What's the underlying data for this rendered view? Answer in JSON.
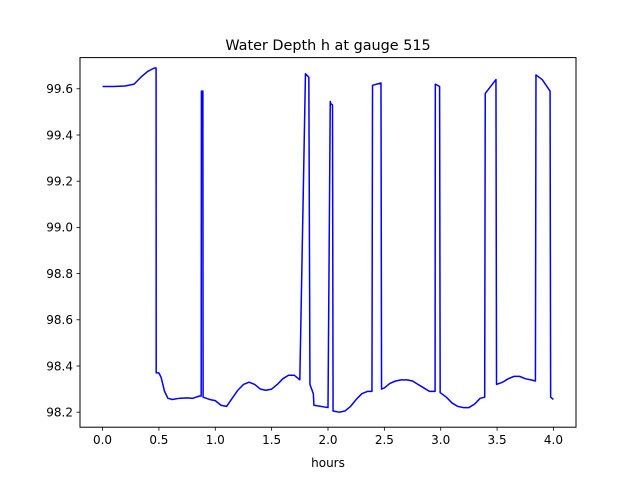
{
  "chart_data": {
    "type": "line",
    "title": "Water Depth h at gauge 515",
    "xlabel": "hours",
    "ylabel": "",
    "xlim": [
      -0.2,
      4.2
    ],
    "ylim": [
      98.135,
      99.735
    ],
    "xticks": [
      0.0,
      0.5,
      1.0,
      1.5,
      2.0,
      2.5,
      3.0,
      3.5,
      4.0
    ],
    "xtick_labels": [
      "0.0",
      "0.5",
      "1.0",
      "1.5",
      "2.0",
      "2.5",
      "3.0",
      "3.5",
      "4.0"
    ],
    "yticks": [
      98.2,
      98.4,
      98.6,
      98.8,
      99.0,
      99.2,
      99.4,
      99.6
    ],
    "ytick_labels": [
      "98.2",
      "98.4",
      "98.6",
      "98.8",
      "99.0",
      "99.2",
      "99.4",
      "99.6"
    ],
    "grid": false,
    "series": [
      {
        "color": "#0000ff",
        "x": [
          0.0,
          0.1,
          0.2,
          0.28,
          0.34,
          0.4,
          0.46,
          0.475,
          0.476,
          0.5,
          0.52,
          0.55,
          0.58,
          0.62,
          0.68,
          0.75,
          0.8,
          0.86,
          0.875,
          0.877,
          0.89,
          0.892,
          0.95,
          1.0,
          1.05,
          1.1,
          1.15,
          1.2,
          1.25,
          1.3,
          1.35,
          1.4,
          1.45,
          1.5,
          1.55,
          1.6,
          1.65,
          1.7,
          1.75,
          1.8,
          1.83,
          1.84,
          1.87,
          1.875,
          2.0,
          2.02,
          2.025,
          2.04,
          2.045,
          2.1,
          2.15,
          2.2,
          2.25,
          2.3,
          2.35,
          2.39,
          2.395,
          2.47,
          2.475,
          2.5,
          2.55,
          2.6,
          2.65,
          2.7,
          2.75,
          2.8,
          2.85,
          2.9,
          2.95,
          2.952,
          2.99,
          2.995,
          3.05,
          3.1,
          3.15,
          3.2,
          3.25,
          3.3,
          3.35,
          3.39,
          3.395,
          3.49,
          3.495,
          3.55,
          3.6,
          3.65,
          3.7,
          3.75,
          3.8,
          3.84,
          3.845,
          3.9,
          3.97,
          3.975,
          4.0
        ],
        "y": [
          99.61,
          99.61,
          99.612,
          99.62,
          99.65,
          99.675,
          99.69,
          99.69,
          98.37,
          98.37,
          98.35,
          98.29,
          98.26,
          98.255,
          98.26,
          98.262,
          98.26,
          98.27,
          98.27,
          99.59,
          99.59,
          98.265,
          98.255,
          98.25,
          98.23,
          98.225,
          98.26,
          98.295,
          98.32,
          98.33,
          98.32,
          98.3,
          98.295,
          98.3,
          98.32,
          98.345,
          98.36,
          98.36,
          98.34,
          99.665,
          99.65,
          98.32,
          98.28,
          98.23,
          98.22,
          99.545,
          99.535,
          99.53,
          98.205,
          98.2,
          98.205,
          98.225,
          98.255,
          98.28,
          98.29,
          98.29,
          99.615,
          99.625,
          98.3,
          98.305,
          98.325,
          98.335,
          98.34,
          98.34,
          98.335,
          98.32,
          98.305,
          98.29,
          98.29,
          99.62,
          99.61,
          98.285,
          98.265,
          98.24,
          98.225,
          98.22,
          98.22,
          98.235,
          98.26,
          98.265,
          99.58,
          99.64,
          98.32,
          98.33,
          98.345,
          98.355,
          98.355,
          98.345,
          98.34,
          98.335,
          99.66,
          99.64,
          99.59,
          98.265,
          98.255
        ]
      }
    ]
  }
}
